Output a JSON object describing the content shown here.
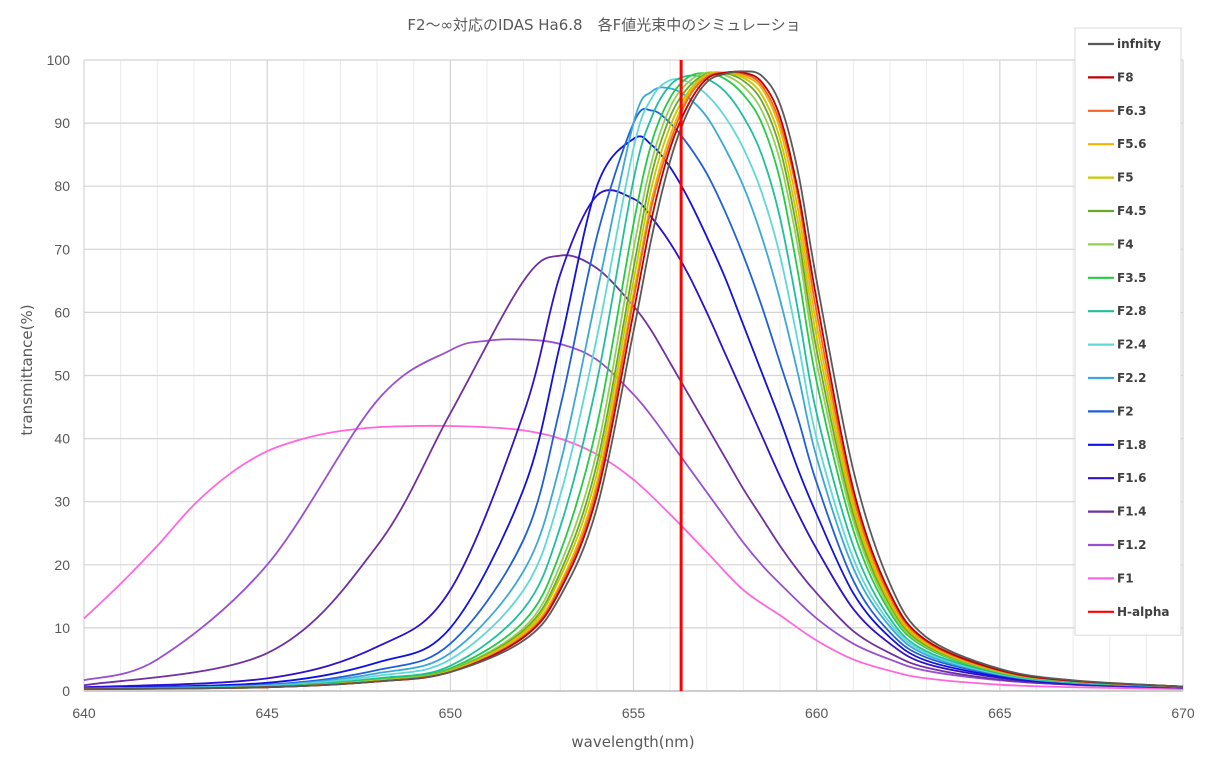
{
  "chart_data": {
    "type": "line",
    "title": "F2～∞対応のIDAS Ha6.8　各F値光束中のシミュレーショ",
    "xlabel": "wavelength(nm)",
    "ylabel": "transmittance(%)",
    "xlim": [
      640,
      670
    ],
    "ylim": [
      0,
      100
    ],
    "x_ticks": [
      640,
      645,
      650,
      655,
      660,
      665,
      670
    ],
    "y_ticks": [
      0,
      10,
      20,
      30,
      40,
      50,
      60,
      70,
      80,
      90,
      100
    ],
    "x_tick_labels": [
      "640",
      "645",
      "650",
      "655",
      "660",
      "665",
      "670"
    ],
    "y_tick_labels": [
      "0",
      "10",
      "20",
      "30",
      "40",
      "50",
      "60",
      "70",
      "80",
      "90",
      "100"
    ],
    "grid": "on",
    "legend_position": "right",
    "series": [
      {
        "name": "infnity",
        "color": "#595959",
        "x": [
          640,
          645,
          648,
          650,
          652,
          653,
          654,
          655,
          655.5,
          656,
          656.5,
          657,
          657.5,
          658,
          658.5,
          659,
          659.5,
          660,
          661,
          662,
          663,
          665,
          667,
          670
        ],
        "y": [
          0.3,
          0.6,
          1.5,
          3,
          8,
          15,
          29,
          57,
          72,
          84,
          92,
          96.5,
          97.8,
          98.2,
          97.5,
          93,
          82,
          65,
          35,
          17,
          8.5,
          3.5,
          1.7,
          0.7
        ]
      },
      {
        "name": "F8",
        "color": "#c00000",
        "x": [
          640,
          645,
          648,
          650,
          652,
          653,
          654,
          655,
          655.5,
          656,
          656.5,
          657,
          657.5,
          658,
          658.5,
          659,
          659.5,
          660,
          661,
          662,
          663,
          665,
          667,
          670
        ],
        "y": [
          0.3,
          0.6,
          1.5,
          3,
          8.5,
          16,
          31,
          60,
          75,
          86,
          93,
          97,
          98,
          98,
          96.5,
          91,
          79,
          62,
          32,
          15.5,
          8,
          3.3,
          1.6,
          0.7
        ]
      },
      {
        "name": "F6.3",
        "color": "#f0642a",
        "x": [
          640,
          645,
          648,
          650,
          652,
          653,
          654,
          655,
          655.5,
          656,
          656.5,
          657,
          657.5,
          658,
          658.5,
          659,
          659.5,
          660,
          661,
          662,
          663,
          665,
          667,
          670
        ],
        "y": [
          0.3,
          0.6,
          1.5,
          3,
          8.7,
          16.5,
          32,
          62,
          77,
          87,
          94,
          97.3,
          98,
          97.8,
          96,
          90,
          78,
          60,
          31,
          15,
          7.8,
          3.2,
          1.6,
          0.7
        ]
      },
      {
        "name": "F5.6",
        "color": "#f0b400",
        "x": [
          640,
          645,
          648,
          650,
          652,
          653,
          654,
          655,
          655.5,
          656,
          656.5,
          657,
          657.5,
          658,
          658.5,
          659,
          659.5,
          660,
          661,
          662,
          663,
          665,
          667,
          670
        ],
        "y": [
          0.3,
          0.6,
          1.5,
          3.1,
          9,
          17,
          33,
          63,
          78,
          88,
          94.5,
          97.5,
          98,
          97.5,
          95.5,
          89,
          76,
          58,
          30,
          14.5,
          7.6,
          3.2,
          1.6,
          0.7
        ]
      },
      {
        "name": "F5",
        "color": "#c8c800",
        "x": [
          640,
          645,
          648,
          650,
          652,
          653,
          654,
          655,
          655.5,
          656,
          656.5,
          657,
          657.5,
          658,
          658.5,
          659,
          659.5,
          660,
          661,
          662,
          663,
          665,
          667,
          670
        ],
        "y": [
          0.3,
          0.6,
          1.6,
          3.2,
          9.3,
          18,
          34.5,
          65,
          80,
          89.5,
          95,
          97.7,
          98,
          97.2,
          94.5,
          87.5,
          74,
          56,
          29,
          14,
          7.4,
          3.1,
          1.6,
          0.7
        ]
      },
      {
        "name": "F4.5",
        "color": "#6aa82a",
        "x": [
          640,
          645,
          648,
          650,
          652,
          653,
          654,
          655,
          655.5,
          656,
          656.5,
          657,
          657.5,
          658,
          658.5,
          659,
          659.5,
          660,
          661,
          662,
          663,
          665,
          667,
          670
        ],
        "y": [
          0.3,
          0.6,
          1.6,
          3.3,
          9.6,
          18.8,
          36,
          67,
          82,
          91,
          95.7,
          97.8,
          97.9,
          96.7,
          93.5,
          86,
          72,
          54,
          28,
          13.6,
          7.2,
          3.1,
          1.6,
          0.7
        ]
      },
      {
        "name": "F4",
        "color": "#92d050",
        "x": [
          640,
          645,
          648,
          650,
          652,
          653,
          654,
          655,
          655.5,
          656,
          656.5,
          657,
          657.5,
          658,
          658.5,
          659,
          659.5,
          660,
          661,
          662,
          663,
          665,
          667,
          670
        ],
        "y": [
          0.3,
          0.6,
          1.7,
          3.4,
          10,
          20,
          38,
          70,
          84,
          92.5,
          96.5,
          98,
          97.6,
          95.8,
          92,
          84,
          70,
          52,
          27,
          13,
          7,
          3,
          1.5,
          0.7
        ]
      },
      {
        "name": "F3.5",
        "color": "#22cc44",
        "x": [
          640,
          645,
          648,
          650,
          652,
          653,
          654,
          655,
          655.5,
          656,
          656.5,
          657,
          657.5,
          658,
          658.5,
          659,
          659.5,
          660,
          661,
          662,
          663,
          665,
          667,
          670
        ],
        "y": [
          0.3,
          0.6,
          1.8,
          3.6,
          11,
          22,
          42,
          74,
          87,
          94,
          97.3,
          97.9,
          97,
          94.5,
          90,
          81,
          66,
          49,
          25.5,
          12.5,
          6.8,
          2.9,
          1.5,
          0.7
        ]
      },
      {
        "name": "F2.8",
        "color": "#1fbf9a",
        "x": [
          640,
          645,
          648,
          650,
          652,
          653,
          654,
          655,
          655.5,
          656,
          656.5,
          657,
          657.5,
          658,
          658.5,
          659,
          659.5,
          660,
          661,
          662,
          663,
          665,
          667,
          670
        ],
        "y": [
          0.3,
          0.7,
          2,
          4,
          13,
          26,
          49,
          81,
          91,
          96,
          97.5,
          97,
          95,
          91,
          85,
          75,
          60,
          44,
          23,
          11.5,
          6.3,
          2.8,
          1.4,
          0.7
        ]
      },
      {
        "name": "F2.4",
        "color": "#5fd8d8",
        "x": [
          640,
          645,
          648,
          650,
          652,
          653,
          654,
          655,
          655.5,
          656,
          656.5,
          657,
          657.5,
          658,
          658.5,
          659,
          659.5,
          660,
          661,
          662,
          663,
          665,
          667,
          670
        ],
        "y": [
          0.3,
          0.8,
          2.4,
          5,
          16,
          31,
          56,
          86,
          94,
          96.8,
          96.5,
          94.5,
          91,
          86,
          79,
          69,
          55,
          40,
          21,
          10.8,
          6,
          2.7,
          1.4,
          0.7
        ]
      },
      {
        "name": "F2.2",
        "color": "#3aa8d8",
        "x": [
          640,
          645,
          648,
          650,
          652,
          653,
          654,
          655,
          655.5,
          656,
          656.5,
          657,
          657.5,
          658,
          658.5,
          659,
          659.5,
          660,
          661,
          662,
          663,
          665,
          667,
          670
        ],
        "y": [
          0.4,
          0.9,
          2.8,
          6,
          19,
          36,
          63,
          90,
          95,
          95.5,
          94,
          91,
          86,
          80,
          72,
          62,
          50,
          37,
          19.5,
          10.2,
          5.7,
          2.6,
          1.3,
          0.7
        ]
      },
      {
        "name": "F2",
        "color": "#1f5fd8",
        "x": [
          640,
          645,
          648,
          650,
          652,
          653,
          654,
          655,
          655.5,
          656,
          656.5,
          657,
          657.5,
          658,
          658.5,
          659,
          659.5,
          660,
          661,
          662,
          663,
          665,
          667,
          670
        ],
        "y": [
          0.4,
          1,
          3.3,
          7.5,
          24,
          45,
          72,
          90,
          92,
          90,
          86.5,
          82,
          76,
          69,
          61,
          52,
          43,
          33,
          17.5,
          9.3,
          5.3,
          2.5,
          1.3,
          0.6
        ]
      },
      {
        "name": "F1.8",
        "color": "#1010e0",
        "x": [
          640,
          645,
          648,
          650,
          652,
          653,
          654,
          655,
          655.5,
          656,
          656.5,
          657,
          657.5,
          658,
          658.5,
          659,
          659.5,
          660,
          661,
          662,
          663,
          665,
          667,
          670
        ],
        "y": [
          0.5,
          1.3,
          4.5,
          10,
          32,
          55,
          80,
          87.5,
          86.5,
          83,
          78,
          72,
          65.5,
          58,
          50.5,
          43,
          35,
          28,
          15.5,
          8.5,
          4.8,
          2.3,
          1.2,
          0.6
        ]
      },
      {
        "name": "F1.6",
        "color": "#3010c8",
        "x": [
          640,
          645,
          648,
          650,
          652,
          653,
          654,
          655,
          655.5,
          656,
          656.5,
          657,
          657.5,
          658,
          658.5,
          659,
          659.5,
          660,
          661,
          662,
          663,
          665,
          667,
          670
        ],
        "y": [
          0.6,
          2,
          7,
          16,
          44,
          66,
          78.5,
          78,
          75,
          71,
          66,
          60,
          53.5,
          47,
          40.5,
          34,
          28,
          22.5,
          13,
          7.5,
          4.3,
          2.1,
          1.1,
          0.6
        ]
      },
      {
        "name": "F1.4",
        "color": "#7030a0",
        "x": [
          640,
          645,
          648,
          650,
          652,
          653,
          654,
          655,
          655.5,
          656,
          656.5,
          657,
          657.5,
          658,
          658.5,
          659,
          659.5,
          660,
          661,
          662,
          663,
          665,
          667,
          670
        ],
        "y": [
          0.9,
          6,
          23,
          44,
          65,
          69,
          67,
          61,
          57,
          52,
          47,
          42,
          37,
          32,
          27.5,
          23,
          19,
          15.5,
          9.5,
          6,
          3.7,
          1.8,
          1.0,
          0.5
        ]
      },
      {
        "name": "F1.2",
        "color": "#9a4fd0",
        "x": [
          640,
          642,
          645,
          648,
          650,
          651,
          652,
          653,
          654,
          655,
          655.5,
          656,
          656.5,
          657,
          657.5,
          658,
          658.5,
          659,
          660,
          661,
          662,
          663,
          665,
          667,
          670
        ],
        "y": [
          1.7,
          5,
          20,
          46,
          54,
          55.5,
          55.7,
          55,
          52.5,
          47,
          43.5,
          39.5,
          35.5,
          31.5,
          27.5,
          23.5,
          20,
          17,
          11.5,
          7.5,
          5,
          3.2,
          1.7,
          1.0,
          0.5
        ]
      },
      {
        "name": "F1",
        "color": "#ff66dd",
        "x": [
          640,
          641,
          642,
          643,
          644,
          645,
          646,
          647,
          648,
          649,
          650,
          651,
          652,
          653,
          654,
          655,
          656,
          657,
          658,
          659,
          660,
          661,
          662,
          663,
          665,
          667,
          670
        ],
        "y": [
          11.5,
          17,
          23,
          29.5,
          34.5,
          38,
          40,
          41.2,
          41.8,
          42,
          42,
          41.8,
          41.3,
          40,
          37.5,
          33.5,
          28,
          22,
          16,
          12,
          8,
          5,
          3.2,
          2,
          1,
          0.6,
          0.3
        ]
      }
    ],
    "h_alpha": {
      "name": "H-alpha",
      "color": "#ff0000",
      "x": 656.3
    }
  }
}
